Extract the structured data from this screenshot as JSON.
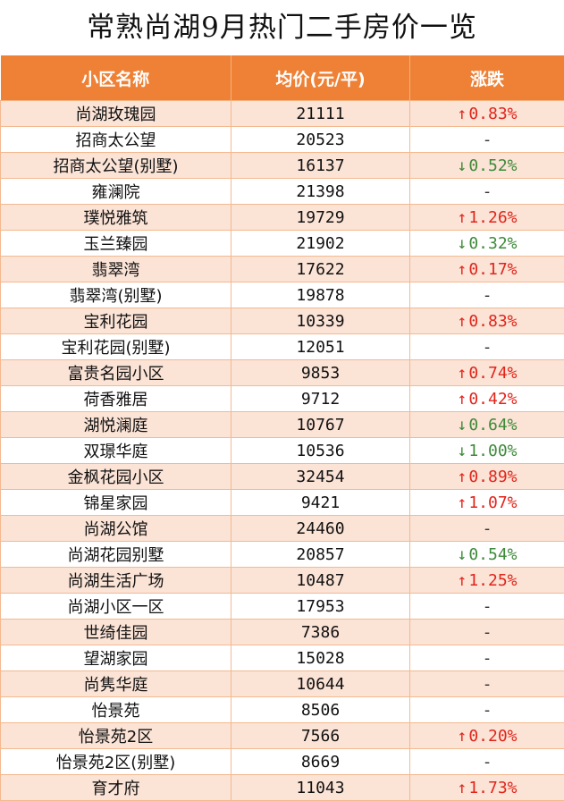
{
  "title": "常熟尚湖9月热门二手房价一览",
  "columns": {
    "name": "小区名称",
    "price": "均价(元/平)",
    "change": "涨跌"
  },
  "colors": {
    "header": "#ee8135",
    "alt_row": "#fbe3d6",
    "up": "#e1251b",
    "down": "#3e8a3a"
  },
  "rows": [
    {
      "name": "尚湖玫瑰园",
      "price": "21111",
      "dir": "up",
      "arrow": "↑",
      "change": "0.83%"
    },
    {
      "name": "招商太公望",
      "price": "20523",
      "dir": "flat",
      "arrow": "",
      "change": "-"
    },
    {
      "name": "招商太公望(别墅)",
      "price": "16137",
      "dir": "down",
      "arrow": "↓",
      "change": "0.52%"
    },
    {
      "name": "雍澜院",
      "price": "21398",
      "dir": "flat",
      "arrow": "",
      "change": "-"
    },
    {
      "name": "璞悦雅筑",
      "price": "19729",
      "dir": "up",
      "arrow": "↑",
      "change": "1.26%"
    },
    {
      "name": "玉兰臻园",
      "price": "21902",
      "dir": "down",
      "arrow": "↓",
      "change": "0.32%"
    },
    {
      "name": "翡翠湾",
      "price": "17622",
      "dir": "up",
      "arrow": "↑",
      "change": "0.17%"
    },
    {
      "name": "翡翠湾(别墅)",
      "price": "19878",
      "dir": "flat",
      "arrow": "",
      "change": "-"
    },
    {
      "name": "宝利花园",
      "price": "10339",
      "dir": "up",
      "arrow": "↑",
      "change": "0.83%"
    },
    {
      "name": "宝利花园(别墅)",
      "price": "12051",
      "dir": "flat",
      "arrow": "",
      "change": "-"
    },
    {
      "name": "富贵名园小区",
      "price": "9853",
      "dir": "up",
      "arrow": "↑",
      "change": "0.74%"
    },
    {
      "name": "荷香雅居",
      "price": "9712",
      "dir": "up",
      "arrow": "↑",
      "change": "0.42%"
    },
    {
      "name": "湖悦澜庭",
      "price": "10767",
      "dir": "down",
      "arrow": "↓",
      "change": "0.64%"
    },
    {
      "name": "双璟华庭",
      "price": "10536",
      "dir": "down",
      "arrow": "↓",
      "change": "1.00%"
    },
    {
      "name": "金枫花园小区",
      "price": "32454",
      "dir": "up",
      "arrow": "↑",
      "change": "0.89%"
    },
    {
      "name": "锦星家园",
      "price": "9421",
      "dir": "up",
      "arrow": "↑",
      "change": "1.07%"
    },
    {
      "name": "尚湖公馆",
      "price": "24460",
      "dir": "flat",
      "arrow": "",
      "change": "-"
    },
    {
      "name": "尚湖花园别墅",
      "price": "20857",
      "dir": "down",
      "arrow": "↓",
      "change": "0.54%"
    },
    {
      "name": "尚湖生活广场",
      "price": "10487",
      "dir": "up",
      "arrow": "↑",
      "change": "1.25%"
    },
    {
      "name": "尚湖小区一区",
      "price": "17953",
      "dir": "flat",
      "arrow": "",
      "change": "-"
    },
    {
      "name": "世绮佳园",
      "price": "7386",
      "dir": "flat",
      "arrow": "",
      "change": "-"
    },
    {
      "name": "望湖家园",
      "price": "15028",
      "dir": "flat",
      "arrow": "",
      "change": "-"
    },
    {
      "name": "尚隽华庭",
      "price": "10644",
      "dir": "flat",
      "arrow": "",
      "change": "-"
    },
    {
      "name": "怡景苑",
      "price": "8506",
      "dir": "flat",
      "arrow": "",
      "change": "-"
    },
    {
      "name": "怡景苑2区",
      "price": "7566",
      "dir": "up",
      "arrow": "↑",
      "change": "0.20%"
    },
    {
      "name": "怡景苑2区(别墅)",
      "price": "8669",
      "dir": "flat",
      "arrow": "",
      "change": "-"
    },
    {
      "name": "育才府",
      "price": "11043",
      "dir": "up",
      "arrow": "↑",
      "change": "1.73%"
    }
  ]
}
